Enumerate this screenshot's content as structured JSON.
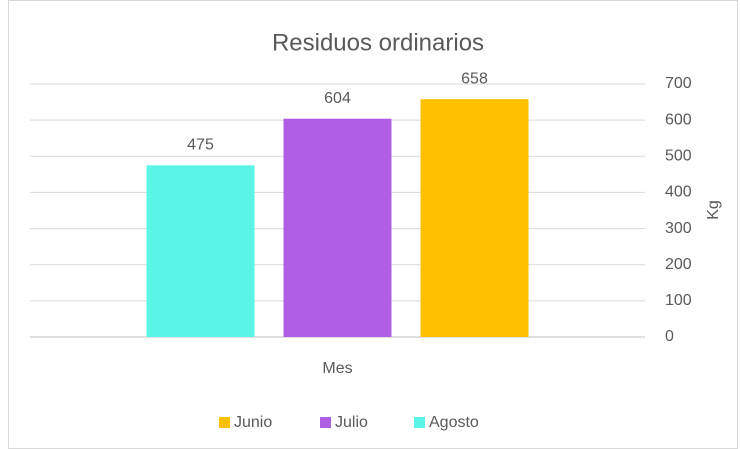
{
  "chart_data": {
    "type": "bar",
    "title": "Residuos ordinarios",
    "categories": [
      "Mes"
    ],
    "series": [
      {
        "name": "Junio",
        "color": "#ffc000",
        "values": [
          658
        ]
      },
      {
        "name": "Julio",
        "color": "#b05ee3",
        "values": [
          604
        ]
      },
      {
        "name": "Agosto",
        "color": "#5af5e6",
        "values": [
          475
        ]
      }
    ],
    "bar_order": "reversed",
    "y_label": "Kg",
    "y_axis_side": "right",
    "ylim": [
      0,
      700
    ],
    "yticks": [
      0,
      100,
      200,
      300,
      400,
      500,
      600,
      700
    ],
    "grid": true,
    "legend": "bottom"
  }
}
